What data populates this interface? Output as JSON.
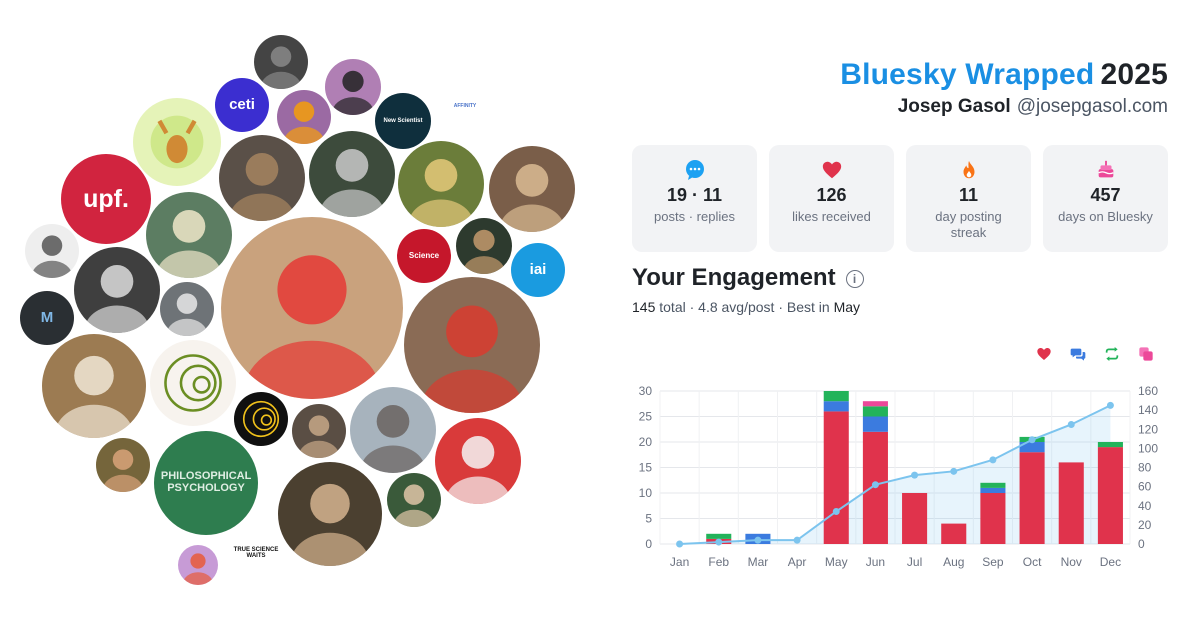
{
  "header": {
    "brand": "Bluesky Wrapped",
    "year": "2025",
    "user_name": "Josep Gasol",
    "user_handle": "@josepgasol.com"
  },
  "stats": [
    {
      "icon": "speech-bubble-icon",
      "value": "19 · 11",
      "label": "posts · replies",
      "color": "#1da1f2"
    },
    {
      "icon": "heart-icon",
      "value": "126",
      "label": "likes received",
      "color": "#e0334c"
    },
    {
      "icon": "flame-icon",
      "value": "11",
      "label": "day posting streak",
      "color": "#f97316"
    },
    {
      "icon": "cake-icon",
      "value": "457",
      "label": "days on Bluesky",
      "color": "#ec4899"
    }
  ],
  "engagement": {
    "title": "Your Engagement",
    "total": "145",
    "total_word": "total",
    "avg_text": "4.8 avg/post",
    "best_prefix": "Best in",
    "best_month": "May",
    "legend_icons": [
      {
        "icon": "likes-heart-icon",
        "color": "#e0334c"
      },
      {
        "icon": "replies-bubble-icon",
        "color": "#3b7bdf"
      },
      {
        "icon": "reposts-arrows-icon",
        "color": "#22b35a"
      },
      {
        "icon": "quotes-squares-icon",
        "color": "#ec4899"
      }
    ]
  },
  "bubbles": [
    {
      "kind": "photo",
      "bg": "#c9a27d",
      "accent": "#e53935"
    },
    {
      "kind": "text",
      "text": "upf.",
      "bg": "#d1243f",
      "fg": "#ffffff"
    },
    {
      "kind": "logo",
      "bg": "#e5f3b8",
      "accent": "#d08a35"
    },
    {
      "kind": "text",
      "text": "ceti",
      "bg": "#3b2ed0",
      "fg": "#ffffff"
    },
    {
      "kind": "photo",
      "bg": "#444444",
      "accent": "#888888"
    },
    {
      "kind": "photo",
      "bg": "#9b6aa3",
      "accent": "#f59e0b"
    },
    {
      "kind": "photo",
      "bg": "#b07fb4",
      "accent": "#222222"
    },
    {
      "kind": "text",
      "text": "New Scientist",
      "bg": "#0f2f3d",
      "fg": "#ffffff"
    },
    {
      "kind": "text",
      "text": "AFFINITY",
      "bg": "#ffffff",
      "fg": "#4a73c9"
    },
    {
      "kind": "photo",
      "bg": "#5a5048",
      "accent": "#a68460"
    },
    {
      "kind": "photo",
      "bg": "#3d4b3c",
      "accent": "#c9c9c9"
    },
    {
      "kind": "photo",
      "bg": "#6b7d3a",
      "accent": "#e5c97a"
    },
    {
      "kind": "photo",
      "bg": "#7a5e49",
      "accent": "#dabb93"
    },
    {
      "kind": "photo",
      "bg": "#5c7d62",
      "accent": "#efe6c9"
    },
    {
      "kind": "text",
      "text": "Science",
      "bg": "#c5172b",
      "fg": "#ffffff"
    },
    {
      "kind": "photo",
      "bg": "#2d3a2e",
      "accent": "#c49a6c"
    },
    {
      "kind": "text",
      "text": "iai",
      "bg": "#1a9be0",
      "fg": "#ffffff"
    },
    {
      "kind": "photo",
      "bg": "#3f3f3f",
      "accent": "#dddddd"
    },
    {
      "kind": "photo",
      "bg": "#6e7377",
      "accent": "#e8e8e8"
    },
    {
      "kind": "photo",
      "bg": "#eeeeee",
      "accent": "#555555"
    },
    {
      "kind": "text",
      "text": "M",
      "bg": "#2a2f33",
      "fg": "#7fb7e6"
    },
    {
      "kind": "photo",
      "bg": "#8a6b55",
      "accent": "#d83b2f"
    },
    {
      "kind": "photo",
      "bg": "#9c7b52",
      "accent": "#f1e7d6"
    },
    {
      "kind": "art",
      "bg": "#f7f3ee",
      "accent": "#6b8e23"
    },
    {
      "kind": "art",
      "bg": "#101010",
      "accent": "#f1c21b"
    },
    {
      "kind": "photo",
      "bg": "#5a4e44",
      "accent": "#c7a887"
    },
    {
      "kind": "photo",
      "bg": "#a7b3bd",
      "accent": "#6a6360"
    },
    {
      "kind": "photo",
      "bg": "#d93a3a",
      "accent": "#f5f5f5"
    },
    {
      "kind": "photo",
      "bg": "#75653b",
      "accent": "#d9a37a"
    },
    {
      "kind": "text",
      "text": "PHILOSOPHICAL PSYCHOLOGY",
      "bg": "#2e7d4f",
      "fg": "#dfeee3"
    },
    {
      "kind": "photo",
      "bg": "#4b4030",
      "accent": "#d5b48f"
    },
    {
      "kind": "photo",
      "bg": "#3a5a3a",
      "accent": "#e1c6a8"
    },
    {
      "kind": "photo",
      "bg": "#c79bd6",
      "accent": "#e85b3a"
    },
    {
      "kind": "text",
      "text": "TRUE SCIENCE WAITS",
      "bg": "#ffffff",
      "fg": "#111111"
    },
    {
      "kind": "photo",
      "bg": "#5f87a8",
      "accent": "#d8cbb8"
    }
  ],
  "chart_data": {
    "type": "bar",
    "categories": [
      "Jan",
      "Feb",
      "Mar",
      "Apr",
      "May",
      "Jun",
      "Jul",
      "Aug",
      "Sep",
      "Oct",
      "Nov",
      "Dec"
    ],
    "series": [
      {
        "values": [
          0,
          1,
          0,
          0,
          26,
          22,
          10,
          4,
          10,
          18,
          16,
          19
        ],
        "color": "#e0334c"
      },
      {
        "values": [
          0,
          0,
          2,
          0,
          2,
          3,
          0,
          0,
          1,
          2,
          0,
          0
        ],
        "color": "#3b7bdf"
      },
      {
        "values": [
          0,
          1,
          0,
          0,
          2,
          2,
          0,
          0,
          1,
          1,
          0,
          1
        ],
        "color": "#22b35a"
      },
      {
        "values": [
          0,
          0,
          0,
          0,
          0,
          1,
          0,
          0,
          0,
          0,
          0,
          0
        ],
        "color": "#ec4899"
      }
    ],
    "line": {
      "values": [
        0,
        2,
        4,
        4,
        34,
        62,
        72,
        76,
        88,
        109,
        125,
        145
      ],
      "color": "#7cc4ee"
    },
    "ylim": [
      0,
      30
    ],
    "yticks": [
      0,
      5,
      10,
      15,
      20,
      25,
      30
    ],
    "y2lim": [
      0,
      160
    ],
    "y2ticks": [
      0,
      20,
      40,
      60,
      80,
      100,
      120,
      140,
      160
    ],
    "grid": true
  }
}
